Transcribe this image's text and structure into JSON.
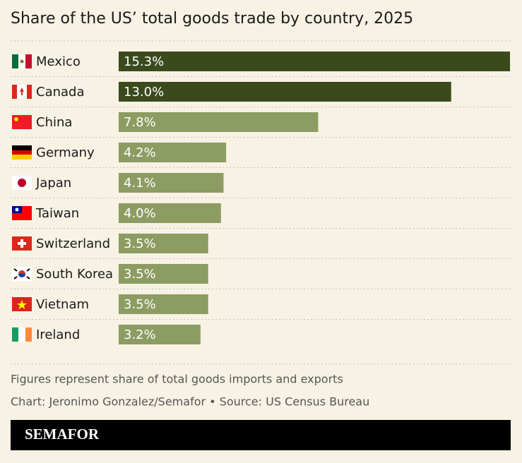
{
  "chart_data": {
    "type": "bar",
    "orientation": "horizontal",
    "title": "Share of the US’ total goods trade by country, 2025",
    "categories": [
      "Mexico",
      "Canada",
      "China",
      "Germany",
      "Japan",
      "Taiwan",
      "Switzerland",
      "South Korea",
      "Vietnam",
      "Ireland"
    ],
    "values": [
      15.3,
      13.0,
      7.8,
      4.2,
      4.1,
      4.0,
      3.5,
      3.5,
      3.5,
      3.2
    ],
    "value_labels": [
      "15.3%",
      "13.0%",
      "7.8%",
      "4.2%",
      "4.1%",
      "4.0%",
      "3.5%",
      "3.5%",
      "3.5%",
      "3.2%"
    ],
    "colors": [
      "#3b4a1d",
      "#3b4a1d",
      "#8c9c62",
      "#8c9c62",
      "#8c9c62",
      "#8c9c62",
      "#8c9c62",
      "#8c9c62",
      "#8c9c62",
      "#8c9c62"
    ],
    "note": "Figures represent share of total goods imports and exports",
    "credit": "Chart: Jeronimo Gonzalez/Semafor • Source: US Census Bureau",
    "brand": "SEMAFOR"
  }
}
